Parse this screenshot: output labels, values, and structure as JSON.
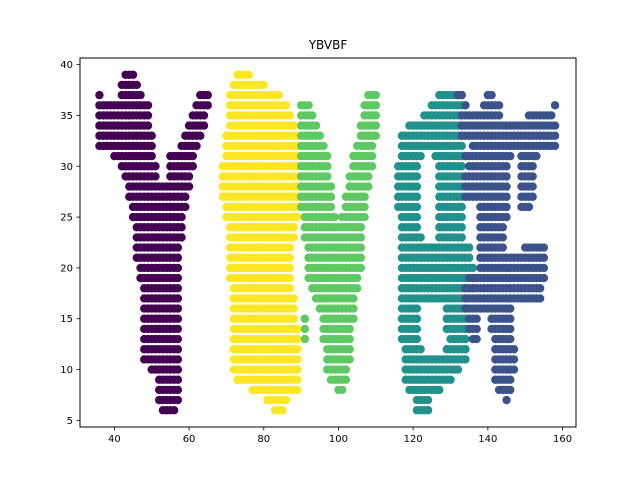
{
  "chart_data": {
    "type": "scatter",
    "title": "YBVBF",
    "xlabel": "",
    "ylabel": "",
    "xlim": [
      30.8,
      163.6
    ],
    "ylim": [
      4.35,
      40.65
    ],
    "xticks": [
      40,
      60,
      80,
      100,
      120,
      140,
      160
    ],
    "yticks": [
      5,
      10,
      15,
      20,
      25,
      30,
      35,
      40
    ],
    "grid": false,
    "legend": "none",
    "point_spacing": {
      "dx": 1,
      "dy": 1
    },
    "series": [
      {
        "color": "#440154",
        "rows": [
          [
            39,
            43,
            45
          ],
          [
            38,
            42,
            46
          ],
          [
            37,
            36,
            36
          ],
          [
            37,
            42,
            47
          ],
          [
            37,
            63,
            65
          ],
          [
            36,
            36,
            49
          ],
          [
            36,
            62,
            65
          ],
          [
            35,
            36,
            49
          ],
          [
            35,
            61,
            64
          ],
          [
            34,
            36,
            49
          ],
          [
            34,
            60,
            64
          ],
          [
            33,
            36,
            50
          ],
          [
            33,
            59,
            63
          ],
          [
            32,
            36,
            50
          ],
          [
            32,
            58,
            62
          ],
          [
            31,
            40,
            50
          ],
          [
            31,
            55,
            61
          ],
          [
            30,
            42,
            51
          ],
          [
            30,
            55,
            61
          ],
          [
            29,
            43,
            51
          ],
          [
            29,
            55,
            60
          ],
          [
            28,
            44,
            60
          ],
          [
            27,
            44,
            59
          ],
          [
            26,
            45,
            59
          ],
          [
            25,
            45,
            58
          ],
          [
            24,
            46,
            58
          ],
          [
            23,
            46,
            58
          ],
          [
            22,
            46,
            57
          ],
          [
            21,
            46,
            57
          ],
          [
            20,
            47,
            57
          ],
          [
            19,
            47,
            57
          ],
          [
            18,
            48,
            57
          ],
          [
            17,
            48,
            57
          ],
          [
            16,
            48,
            57
          ],
          [
            15,
            48,
            57
          ],
          [
            14,
            48,
            57
          ],
          [
            13,
            48,
            57
          ],
          [
            12,
            48,
            57
          ],
          [
            11,
            48,
            57
          ],
          [
            10,
            50,
            57
          ],
          [
            9,
            52,
            57
          ],
          [
            8,
            52,
            57
          ],
          [
            7,
            52,
            57
          ],
          [
            6,
            53,
            56
          ]
        ]
      },
      {
        "color": "#fde725",
        "rows": [
          [
            39,
            73,
            76
          ],
          [
            38,
            72,
            80
          ],
          [
            37,
            71,
            84
          ],
          [
            36,
            71,
            86
          ],
          [
            35,
            71,
            87
          ],
          [
            34,
            71,
            88
          ],
          [
            33,
            70,
            89
          ],
          [
            32,
            70,
            89
          ],
          [
            31,
            70,
            89
          ],
          [
            30,
            69,
            89
          ],
          [
            29,
            69,
            89
          ],
          [
            28,
            69,
            89
          ],
          [
            27,
            69,
            89
          ],
          [
            26,
            70,
            89
          ],
          [
            25,
            70,
            89
          ],
          [
            24,
            71,
            88
          ],
          [
            23,
            71,
            88
          ],
          [
            22,
            71,
            87
          ],
          [
            21,
            71,
            87
          ],
          [
            20,
            71,
            87
          ],
          [
            19,
            71,
            87
          ],
          [
            18,
            72,
            87
          ],
          [
            17,
            72,
            88
          ],
          [
            16,
            72,
            88
          ],
          [
            15,
            72,
            88
          ],
          [
            14,
            72,
            89
          ],
          [
            13,
            72,
            89
          ],
          [
            12,
            72,
            89
          ],
          [
            11,
            72,
            89
          ],
          [
            10,
            72,
            89
          ],
          [
            9,
            73,
            89
          ],
          [
            8,
            77,
            89
          ],
          [
            7,
            81,
            86
          ],
          [
            6,
            83,
            85
          ]
        ]
      },
      {
        "color": "#5ec962",
        "rows": [
          [
            37,
            108,
            110
          ],
          [
            36,
            90,
            92
          ],
          [
            36,
            107,
            110
          ],
          [
            35,
            90,
            93
          ],
          [
            35,
            107,
            110
          ],
          [
            34,
            90,
            94
          ],
          [
            34,
            106,
            110
          ],
          [
            33,
            90,
            95
          ],
          [
            33,
            106,
            110
          ],
          [
            32,
            90,
            96
          ],
          [
            32,
            105,
            109
          ],
          [
            31,
            90,
            97
          ],
          [
            31,
            104,
            109
          ],
          [
            30,
            90,
            97
          ],
          [
            30,
            104,
            109
          ],
          [
            29,
            90,
            97
          ],
          [
            29,
            103,
            108
          ],
          [
            28,
            90,
            98
          ],
          [
            28,
            103,
            108
          ],
          [
            27,
            90,
            98
          ],
          [
            27,
            102,
            107
          ],
          [
            26,
            90,
            98
          ],
          [
            26,
            102,
            107
          ],
          [
            25,
            91,
            99
          ],
          [
            25,
            101,
            107
          ],
          [
            24,
            91,
            106
          ],
          [
            23,
            91,
            106
          ],
          [
            22,
            92,
            106
          ],
          [
            21,
            92,
            106
          ],
          [
            20,
            92,
            106
          ],
          [
            19,
            92,
            105
          ],
          [
            18,
            93,
            105
          ],
          [
            17,
            94,
            104
          ],
          [
            16,
            95,
            104
          ],
          [
            15,
            91,
            91
          ],
          [
            15,
            96,
            104
          ],
          [
            14,
            91,
            91
          ],
          [
            14,
            96,
            103
          ],
          [
            13,
            91,
            91
          ],
          [
            13,
            96,
            103
          ],
          [
            12,
            97,
            103
          ],
          [
            11,
            97,
            103
          ],
          [
            10,
            97,
            102
          ],
          [
            9,
            98,
            102
          ],
          [
            8,
            100,
            101
          ]
        ]
      },
      {
        "color": "#21918c",
        "rows": [
          [
            37,
            127,
            133
          ],
          [
            36,
            125,
            133
          ],
          [
            35,
            123,
            133
          ],
          [
            34,
            119,
            133
          ],
          [
            33,
            117,
            133
          ],
          [
            32,
            117,
            133
          ],
          [
            31,
            117,
            122
          ],
          [
            31,
            126,
            133
          ],
          [
            30,
            116,
            121
          ],
          [
            30,
            127,
            133
          ],
          [
            29,
            116,
            121
          ],
          [
            29,
            127,
            133
          ],
          [
            28,
            116,
            121
          ],
          [
            28,
            127,
            133
          ],
          [
            27,
            116,
            121
          ],
          [
            27,
            127,
            133
          ],
          [
            26,
            116,
            121
          ],
          [
            26,
            127,
            133
          ],
          [
            25,
            117,
            121
          ],
          [
            25,
            127,
            133
          ],
          [
            24,
            117,
            121
          ],
          [
            24,
            127,
            133
          ],
          [
            23,
            117,
            122
          ],
          [
            23,
            127,
            133
          ],
          [
            22,
            117,
            135
          ],
          [
            21,
            117,
            135
          ],
          [
            20,
            117,
            136
          ],
          [
            19,
            117,
            136
          ],
          [
            18,
            117,
            136
          ],
          [
            17,
            117,
            134
          ],
          [
            16,
            117,
            121
          ],
          [
            16,
            129,
            134
          ],
          [
            15,
            117,
            121
          ],
          [
            15,
            129,
            134
          ],
          [
            14,
            117,
            121
          ],
          [
            14,
            129,
            134
          ],
          [
            13,
            117,
            121
          ],
          [
            13,
            130,
            134
          ],
          [
            12,
            118,
            122
          ],
          [
            12,
            129,
            134
          ],
          [
            11,
            118,
            134
          ],
          [
            10,
            118,
            132
          ],
          [
            9,
            118,
            130
          ],
          [
            8,
            119,
            127
          ],
          [
            7,
            121,
            124
          ],
          [
            6,
            121,
            124
          ]
        ]
      },
      {
        "color": "#3b528b",
        "rows": [
          [
            37,
            132,
            133
          ],
          [
            37,
            140,
            141
          ],
          [
            36,
            134,
            134
          ],
          [
            36,
            139,
            143
          ],
          [
            36,
            158,
            158
          ],
          [
            35,
            133,
            143
          ],
          [
            35,
            151,
            157
          ],
          [
            34,
            133,
            158
          ],
          [
            33,
            133,
            158
          ],
          [
            32,
            136,
            158
          ],
          [
            31,
            134,
            146
          ],
          [
            31,
            149,
            153
          ],
          [
            30,
            135,
            145
          ],
          [
            30,
            149,
            152
          ],
          [
            29,
            134,
            145
          ],
          [
            29,
            149,
            152
          ],
          [
            28,
            134,
            145
          ],
          [
            28,
            149,
            152
          ],
          [
            27,
            134,
            145
          ],
          [
            27,
            149,
            152
          ],
          [
            26,
            138,
            145
          ],
          [
            26,
            149,
            151
          ],
          [
            25,
            138,
            145
          ],
          [
            24,
            138,
            144
          ],
          [
            23,
            138,
            144
          ],
          [
            22,
            138,
            144
          ],
          [
            22,
            150,
            155
          ],
          [
            21,
            138,
            155
          ],
          [
            20,
            138,
            155
          ],
          [
            19,
            135,
            155
          ],
          [
            18,
            134,
            154
          ],
          [
            17,
            134,
            154
          ],
          [
            16,
            134,
            146
          ],
          [
            15,
            135,
            137
          ],
          [
            15,
            141,
            146
          ],
          [
            14,
            135,
            137
          ],
          [
            14,
            141,
            146
          ],
          [
            13,
            136,
            137
          ],
          [
            13,
            142,
            146
          ],
          [
            12,
            142,
            147
          ],
          [
            11,
            142,
            147
          ],
          [
            10,
            142,
            147
          ],
          [
            9,
            142,
            146
          ],
          [
            8,
            143,
            146
          ],
          [
            7,
            145,
            145
          ]
        ]
      }
    ]
  }
}
